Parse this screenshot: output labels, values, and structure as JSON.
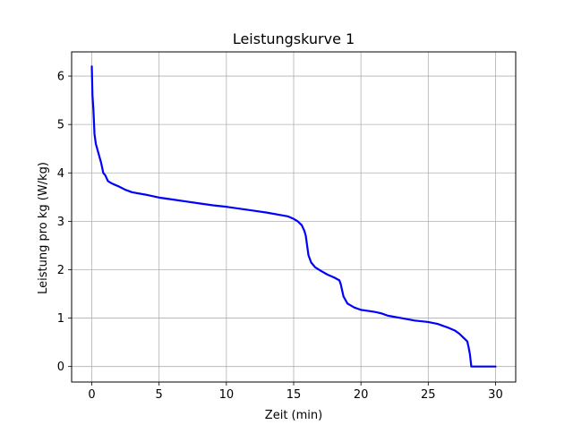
{
  "chart_data": {
    "type": "line",
    "title": "Leistungskurve 1",
    "xlabel": "Zeit (min)",
    "ylabel": "Leistung pro kg (W/kg)",
    "xlim": [
      -1.5,
      31.5
    ],
    "ylim": [
      -0.32,
      6.5
    ],
    "xticks": [
      0,
      5,
      10,
      15,
      20,
      25,
      30
    ],
    "yticks": [
      0,
      1,
      2,
      3,
      4,
      5,
      6
    ],
    "grid": true,
    "series": [
      {
        "color": "#0000ff",
        "x": [
          0,
          0.05,
          0.12,
          0.2,
          0.3,
          0.5,
          0.7,
          0.85,
          1.0,
          1.2,
          1.5,
          2.0,
          2.5,
          3.0,
          4.0,
          5.0,
          6.0,
          7.0,
          8.0,
          9.0,
          10.0,
          11.0,
          12.0,
          13.0,
          14.0,
          14.6,
          15.0,
          15.3,
          15.6,
          15.8,
          15.9,
          16.0,
          16.1,
          16.3,
          16.6,
          17.0,
          17.5,
          18.0,
          18.4,
          18.5,
          18.7,
          19.0,
          19.5,
          20.0,
          20.5,
          21.0,
          21.5,
          22.0,
          23.0,
          24.0,
          25.0,
          25.7,
          26.0,
          26.5,
          27.0,
          27.3,
          27.6,
          27.9,
          28.0,
          28.1,
          28.2,
          29.0,
          30.0
        ],
        "y": [
          6.2,
          5.6,
          5.3,
          4.8,
          4.6,
          4.4,
          4.2,
          4.0,
          3.95,
          3.83,
          3.78,
          3.72,
          3.65,
          3.6,
          3.55,
          3.49,
          3.45,
          3.41,
          3.37,
          3.33,
          3.3,
          3.26,
          3.22,
          3.18,
          3.13,
          3.1,
          3.05,
          3.0,
          2.92,
          2.8,
          2.7,
          2.5,
          2.3,
          2.15,
          2.05,
          1.98,
          1.9,
          1.84,
          1.78,
          1.7,
          1.45,
          1.3,
          1.22,
          1.17,
          1.15,
          1.13,
          1.1,
          1.05,
          1.0,
          0.95,
          0.92,
          0.88,
          0.85,
          0.8,
          0.74,
          0.68,
          0.6,
          0.52,
          0.4,
          0.25,
          0.0,
          0.0,
          0.0
        ]
      }
    ]
  }
}
